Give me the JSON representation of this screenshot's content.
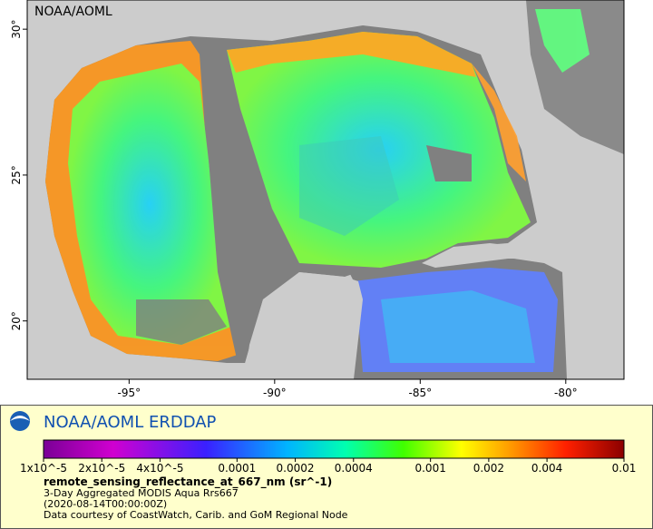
{
  "map": {
    "credit": "NOAA/AOML",
    "xlim": [
      -98.5,
      -78
    ],
    "ylim": [
      18,
      31
    ],
    "xticks": [
      {
        "value": -95,
        "label": "-95°"
      },
      {
        "value": -90,
        "label": "-90°"
      },
      {
        "value": -85,
        "label": "-85°"
      },
      {
        "value": -80,
        "label": "-80°"
      }
    ],
    "yticks": [
      {
        "value": 20,
        "label": "20°"
      },
      {
        "value": 25,
        "label": "25°"
      },
      {
        "value": 30,
        "label": "30°"
      }
    ]
  },
  "legend": {
    "title": "NOAA/AOML ERDDAP",
    "colorbar": {
      "range": [
        1e-05,
        0.01
      ],
      "log": true,
      "ticks": [
        {
          "value": 1e-05,
          "label": "1x10^-5"
        },
        {
          "value": 2e-05,
          "label": "2x10^-5"
        },
        {
          "value": 4e-05,
          "label": "4x10^-5"
        },
        0.0001,
        0.0002,
        0.0004,
        0.001,
        0.002,
        0.004,
        0.01
      ]
    },
    "variable": "remote_sensing_reflectance_at_667_nm (sr^-1)",
    "lines": [
      "3-Day Aggregated MODIS Aqua Rrs667",
      "(2020-08-14T00:00:00Z)",
      "Data courtesy of CoastWatch, Carib. and GoM Regional Node"
    ]
  }
}
